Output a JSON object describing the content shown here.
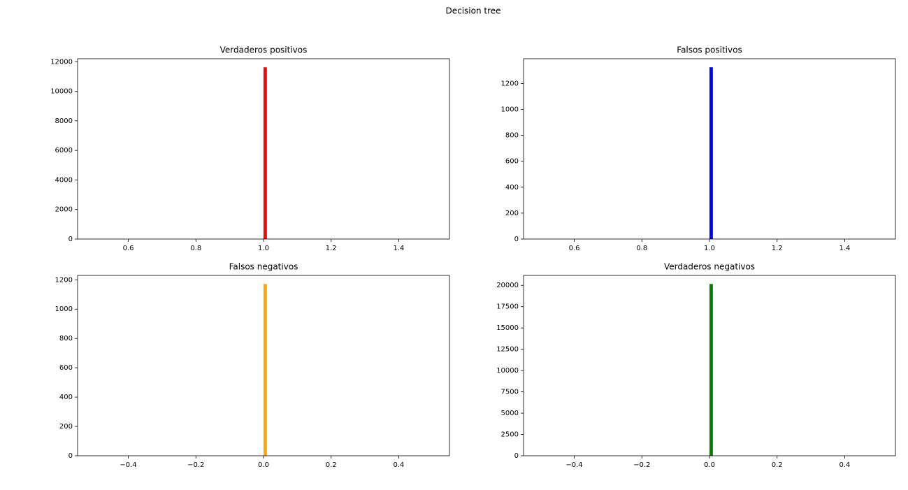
{
  "title": "Decision tree",
  "chart_data": [
    {
      "type": "histogram",
      "title": "Verdaderos positivos",
      "bins": [
        1.0,
        1.01
      ],
      "values": [
        11620
      ],
      "color": "#ff0000",
      "xlim": [
        0.45,
        1.55
      ],
      "ylim": [
        0,
        12201
      ],
      "xticks": [
        0.6,
        0.8,
        {
          "value": 1.0,
          "label": "1.0"
        },
        1.2,
        1.4
      ],
      "yticks": [
        0,
        2000,
        4000,
        6000,
        8000,
        10000,
        12000
      ]
    },
    {
      "type": "histogram",
      "title": "Falsos positivos",
      "bins": [
        1.0,
        1.01
      ],
      "values": [
        1325
      ],
      "color": "#0000ff",
      "xlim": [
        0.45,
        1.55
      ],
      "ylim": [
        0,
        1391
      ],
      "xticks": [
        0.6,
        0.8,
        {
          "value": 1.0,
          "label": "1.0"
        },
        1.2,
        1.4
      ],
      "yticks": [
        0,
        200,
        400,
        600,
        800,
        1000,
        1200
      ]
    },
    {
      "type": "histogram",
      "title": "Falsos negativos",
      "bins": [
        0.0,
        0.01
      ],
      "values": [
        1171
      ],
      "color": "#ffa500",
      "xlim": [
        -0.55,
        0.55
      ],
      "ylim": [
        0,
        1230
      ],
      "xticks": [
        {
          "value": -0.4,
          "label": "−0.4"
        },
        {
          "value": -0.2,
          "label": "−0.2"
        },
        {
          "value": 0.0,
          "label": "0.0"
        },
        0.2,
        0.4
      ],
      "yticks": [
        0,
        200,
        400,
        600,
        800,
        1000,
        1200
      ]
    },
    {
      "type": "histogram",
      "title": "Verdaderos negativos",
      "bins": [
        0.0,
        0.01
      ],
      "values": [
        20160
      ],
      "color": "#008000",
      "xlim": [
        -0.55,
        0.55
      ],
      "ylim": [
        0,
        21168
      ],
      "xticks": [
        {
          "value": -0.4,
          "label": "−0.4"
        },
        {
          "value": -0.2,
          "label": "−0.2"
        },
        {
          "value": 0.0,
          "label": "0.0"
        },
        0.2,
        0.4
      ],
      "yticks": [
        0,
        2500,
        5000,
        7500,
        10000,
        12500,
        15000,
        17500,
        20000
      ]
    }
  ]
}
